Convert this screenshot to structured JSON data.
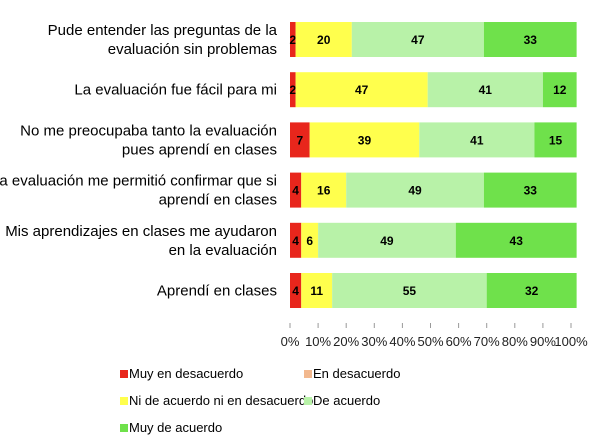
{
  "chart_data": {
    "type": "bar",
    "orientation": "horizontal",
    "stacked": true,
    "percent": true,
    "categories": [
      [
        "Pude entender las preguntas de la",
        "evaluación sin problemas"
      ],
      [
        "La evaluación fue fácil para mi"
      ],
      [
        "No me preocupaba tanto la evaluación",
        "pues aprendí en clases"
      ],
      [
        "La evaluación me permitió confirmar que si",
        "aprendí en clases"
      ],
      [
        "Mis aprendizajes en clases me ayudaron",
        "en la evaluación"
      ],
      [
        "Aprendí en clases"
      ]
    ],
    "series": [
      {
        "name": "Muy en desacuerdo",
        "color": "#e8261c",
        "values": [
          2,
          2,
          7,
          4,
          4,
          4
        ]
      },
      {
        "name": "En desacuerdo",
        "color": "#f2b88e",
        "values": [
          0,
          0,
          0,
          0,
          0,
          0
        ]
      },
      {
        "name": "Ni de acuerdo ni en desacuerdo",
        "color": "#ffff4d",
        "values": [
          20,
          47,
          39,
          16,
          6,
          11
        ]
      },
      {
        "name": "De acuerdo",
        "color": "#b8f2a8",
        "values": [
          47,
          41,
          41,
          49,
          49,
          55
        ]
      },
      {
        "name": "Muy de acuerdo",
        "color": "#6fe14b",
        "values": [
          33,
          12,
          15,
          33,
          43,
          32
        ]
      }
    ],
    "xticks": [
      "0%",
      "10%",
      "20%",
      "30%",
      "40%",
      "50%",
      "60%",
      "70%",
      "80%",
      "90%",
      "100%"
    ],
    "xlim": [
      0,
      100
    ],
    "grid": false,
    "legend_position": "bottom"
  }
}
